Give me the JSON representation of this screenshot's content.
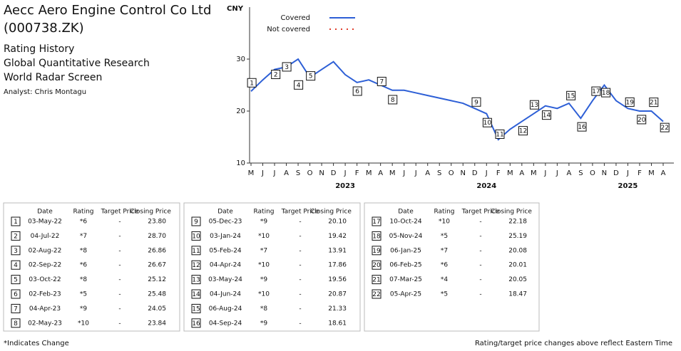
{
  "header": {
    "company": "Aecc Aero Engine Control Co Ltd",
    "ticker": "(000738.ZK)",
    "lines": [
      "Rating History",
      "Global Quantitative Research",
      "World Radar Screen"
    ],
    "analyst": "Analyst: Chris Montagu"
  },
  "chart_data": {
    "type": "line",
    "y_label": "CNY",
    "categories": [
      "M",
      "J",
      "J",
      "A",
      "S",
      "O",
      "N",
      "D",
      "J",
      "F",
      "M",
      "A",
      "M",
      "J",
      "J",
      "A",
      "S",
      "O",
      "N",
      "D",
      "J",
      "F",
      "M",
      "A",
      "M",
      "J",
      "J",
      "A",
      "S",
      "O",
      "N",
      "D",
      "J",
      "F",
      "M",
      "A"
    ],
    "years": [
      "2023",
      "2024",
      "2025"
    ],
    "series": [
      {
        "name": "Covered",
        "color": "#2d5fd6",
        "style": "solid",
        "values": [
          23.8,
          26,
          28,
          28.5,
          30,
          26.5,
          28,
          29.5,
          27,
          25.5,
          26,
          25,
          24,
          24,
          23.5,
          23,
          22.5,
          22,
          21.5,
          20.5,
          19.5,
          14.5,
          16.5,
          18,
          19.5,
          21,
          20.5,
          21.5,
          18.6,
          22,
          25,
          22,
          20.5,
          20,
          20,
          18
        ]
      },
      {
        "name": "Not covered",
        "color": "#e0402e",
        "style": "dotted",
        "values": [
          null,
          null,
          null,
          null,
          null,
          null,
          null,
          null,
          null,
          null,
          null,
          null,
          null,
          null,
          null,
          null,
          null,
          null,
          null,
          null,
          null,
          null,
          null,
          null,
          null,
          null,
          null,
          null,
          null,
          null,
          null,
          null,
          null,
          null,
          null,
          null
        ]
      }
    ],
    "ylim": [
      10,
      40
    ],
    "yticks": [
      10,
      20,
      30
    ],
    "grid": false
  },
  "ratings": {
    "columns": [
      "Date",
      "Rating",
      "Target Price",
      "Closing Price"
    ],
    "rows": [
      [
        1,
        "03-May-22",
        "*6",
        "-",
        "23.80"
      ],
      [
        2,
        "04-Jul-22",
        "*7",
        "-",
        "28.70"
      ],
      [
        3,
        "02-Aug-22",
        "*8",
        "-",
        "26.86"
      ],
      [
        4,
        "02-Sep-22",
        "*6",
        "-",
        "26.67"
      ],
      [
        5,
        "03-Oct-22",
        "*8",
        "-",
        "25.12"
      ],
      [
        6,
        "02-Feb-23",
        "*5",
        "-",
        "25.48"
      ],
      [
        7,
        "04-Apr-23",
        "*9",
        "-",
        "24.05"
      ],
      [
        8,
        "02-May-23",
        "*10",
        "-",
        "23.84"
      ],
      [
        9,
        "05-Dec-23",
        "*9",
        "-",
        "20.10"
      ],
      [
        10,
        "03-Jan-24",
        "*10",
        "-",
        "19.42"
      ],
      [
        11,
        "05-Feb-24",
        "*7",
        "-",
        "13.91"
      ],
      [
        12,
        "04-Apr-24",
        "*10",
        "-",
        "17.86"
      ],
      [
        13,
        "03-May-24",
        "*9",
        "-",
        "19.56"
      ],
      [
        14,
        "04-Jun-24",
        "*10",
        "-",
        "20.87"
      ],
      [
        15,
        "06-Aug-24",
        "*8",
        "-",
        "21.33"
      ],
      [
        16,
        "04-Sep-24",
        "*9",
        "-",
        "18.61"
      ],
      [
        17,
        "10-Oct-24",
        "*10",
        "-",
        "22.18"
      ],
      [
        18,
        "05-Nov-24",
        "*5",
        "-",
        "25.19"
      ],
      [
        19,
        "06-Jan-25",
        "*7",
        "-",
        "20.08"
      ],
      [
        20,
        "06-Feb-25",
        "*6",
        "-",
        "20.01"
      ],
      [
        21,
        "07-Mar-25",
        "*4",
        "-",
        "20.05"
      ],
      [
        22,
        "05-Apr-25",
        "*5",
        "-",
        "18.47"
      ]
    ]
  },
  "footer": {
    "left": "*Indicates Change",
    "right": "Rating/target price changes above reflect Eastern Time"
  }
}
